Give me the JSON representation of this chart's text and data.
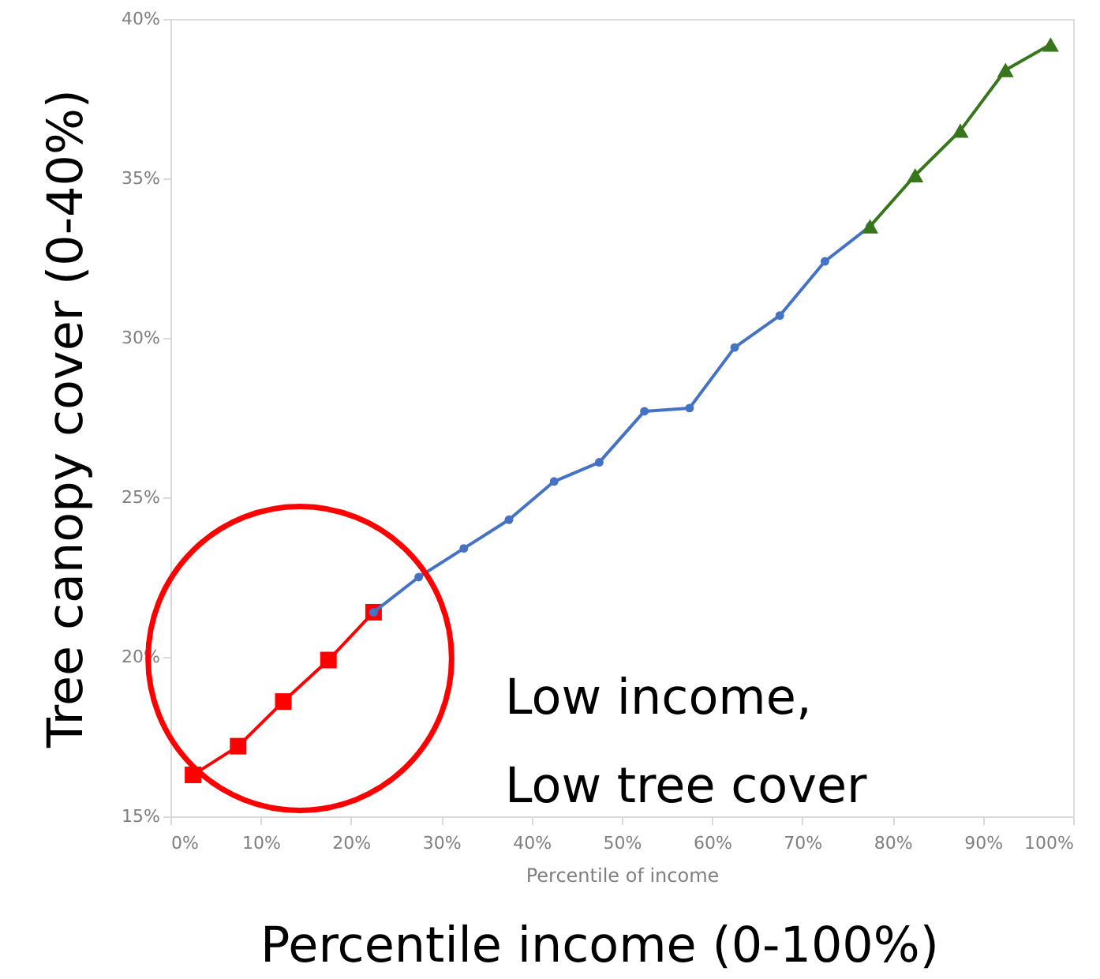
{
  "chart_data": {
    "type": "line",
    "xlabel": "Percentile of income",
    "ylabel": "Tree canopy cover (0-40%)",
    "annotations": [
      "Low income,\nLow tree cover",
      "Percentile income (0-100%)"
    ],
    "series": [
      {
        "color": "#ff0000",
        "marker": "square",
        "x": [
          2.5,
          7.5,
          12.5,
          17.5,
          22.5
        ],
        "values": [
          16.3,
          17.2,
          18.6,
          19.9,
          21.4
        ]
      },
      {
        "color": "#4472c4",
        "marker": "circle",
        "x": [
          22.5,
          27.5,
          32.5,
          37.5,
          42.5,
          47.5,
          52.5,
          57.5,
          62.5,
          67.5,
          72.5,
          77.5
        ],
        "values": [
          21.4,
          22.5,
          23.4,
          24.3,
          25.5,
          26.1,
          27.7,
          27.8,
          29.7,
          30.7,
          32.4,
          33.5
        ]
      },
      {
        "color": "#38761d",
        "marker": "triangle",
        "x": [
          77.5,
          82.5,
          87.5,
          92.5,
          97.5
        ],
        "values": [
          33.5,
          35.1,
          36.5,
          38.4,
          39.2
        ]
      }
    ],
    "xlim": [
      0,
      100
    ],
    "xticks": [
      {
        "value": 0,
        "label": "0%"
      },
      {
        "value": 10,
        "label": "10%"
      },
      {
        "value": 20,
        "label": "20%"
      },
      {
        "value": 30,
        "label": "30%"
      },
      {
        "value": 40,
        "label": "40%"
      },
      {
        "value": 50,
        "label": "50%"
      },
      {
        "value": 60,
        "label": "60%"
      },
      {
        "value": 70,
        "label": "70%"
      },
      {
        "value": 80,
        "label": "80%"
      },
      {
        "value": 90,
        "label": "90%"
      },
      {
        "value": 100,
        "label": "100%"
      }
    ],
    "ylim": [
      15,
      40
    ],
    "yticks": [
      {
        "value": 15,
        "label": "15%"
      },
      {
        "value": 20,
        "label": "20%"
      },
      {
        "value": 25,
        "label": "25%"
      },
      {
        "value": 30,
        "label": "30%"
      },
      {
        "value": 35,
        "label": "35%"
      },
      {
        "value": 40,
        "label": "40%"
      }
    ],
    "grid": false,
    "line_style": "solid"
  }
}
